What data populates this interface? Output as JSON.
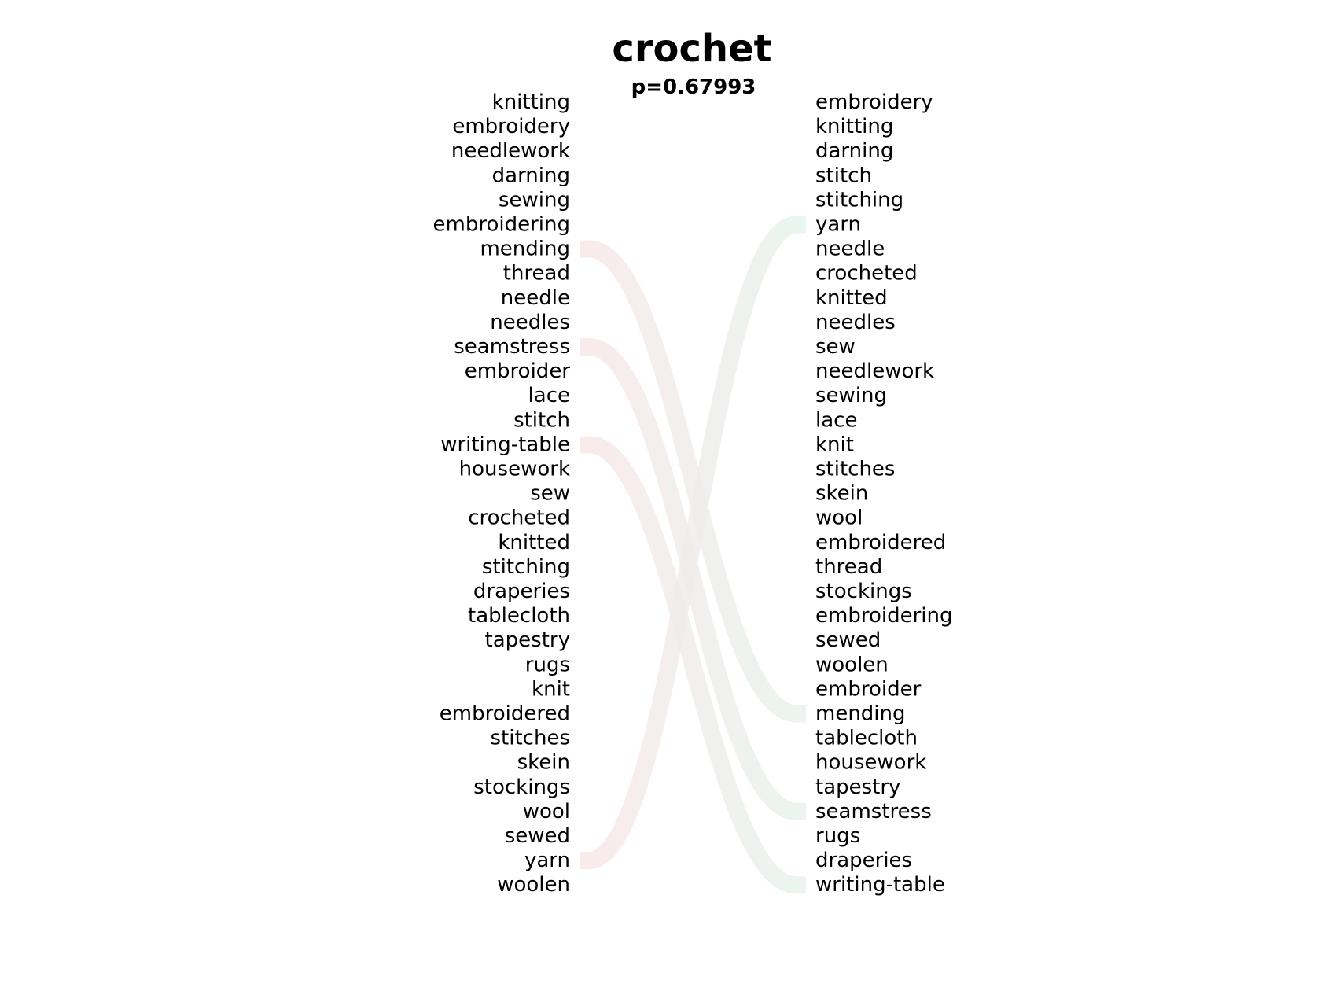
{
  "title": "crochet",
  "subtitle": "p=0.67993",
  "left_words": [
    "knitting",
    "embroidery",
    "needlework",
    "darning",
    "sewing",
    "embroidering",
    "mending",
    "thread",
    "needle",
    "needles",
    "seamstress",
    "embroider",
    "lace",
    "stitch",
    "writing-table",
    "housework",
    "sew",
    "crocheted",
    "knitted",
    "stitching",
    "draperies",
    "tablecloth",
    "tapestry",
    "rugs",
    "knit",
    "embroidered",
    "stitches",
    "skein",
    "stockings",
    "wool",
    "sewed",
    "yarn",
    "woolen"
  ],
  "right_words": [
    "embroidery",
    "knitting",
    "darning",
    "stitch",
    "stitching",
    "yarn",
    "needle",
    "crocheted",
    "knitted",
    "needles",
    "sew",
    "needlework",
    "sewing",
    "lace",
    "knit",
    "stitches",
    "skein",
    "wool",
    "embroidered",
    "thread",
    "stockings",
    "embroidering",
    "sewed",
    "woolen",
    "embroider",
    "mending",
    "tablecloth",
    "housework",
    "tapestry",
    "seamstress",
    "rugs",
    "draperies",
    "writing-table"
  ],
  "connections": [
    {
      "word": "mending",
      "from_rank": 7,
      "to_rank": 26
    },
    {
      "word": "seamstress",
      "from_rank": 11,
      "to_rank": 30
    },
    {
      "word": "writing-table",
      "from_rank": 15,
      "to_rank": 33
    },
    {
      "word": "yarn",
      "from_rank": 32,
      "to_rank": 6
    }
  ],
  "colors": {
    "text": "#000000",
    "link_left": "#f7e6e6",
    "link_right": "#e6f2ec"
  }
}
